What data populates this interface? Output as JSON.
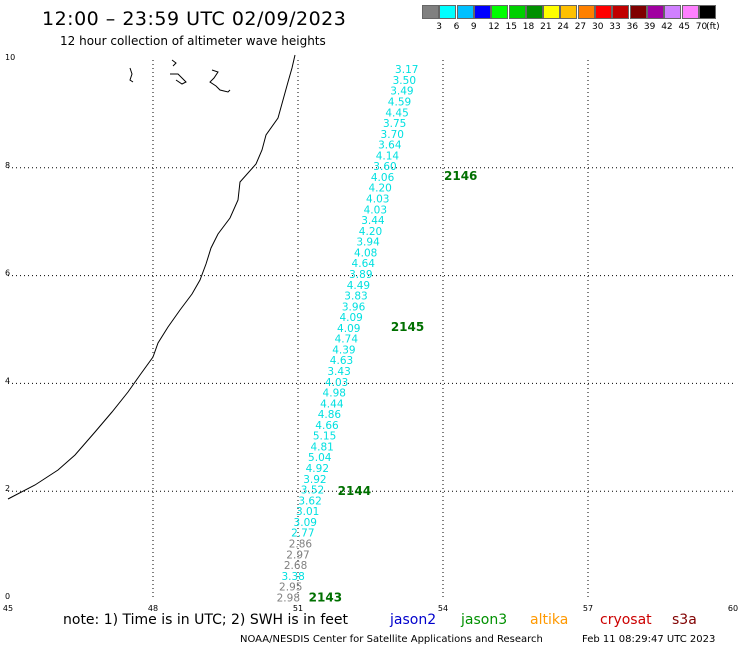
{
  "header": {
    "title": "12:00 – 23:59 UTC 02/09/2023",
    "subtitle": "12 hour collection of altimeter wave heights"
  },
  "legend": {
    "unit": "(ft)",
    "bins": [
      {
        "label": "",
        "color": "#808080"
      },
      {
        "label": "3",
        "color": "#00ffff"
      },
      {
        "label": "6",
        "color": "#00c0ff"
      },
      {
        "label": "9",
        "color": "#0000ff"
      },
      {
        "label": "12",
        "color": "#00ff00"
      },
      {
        "label": "15",
        "color": "#00d000"
      },
      {
        "label": "18",
        "color": "#009000"
      },
      {
        "label": "21",
        "color": "#ffff00"
      },
      {
        "label": "24",
        "color": "#ffc000"
      },
      {
        "label": "27",
        "color": "#ff8000"
      },
      {
        "label": "30",
        "color": "#ff0000"
      },
      {
        "label": "33",
        "color": "#c00000"
      },
      {
        "label": "36",
        "color": "#800000"
      },
      {
        "label": "39",
        "color": "#a000a0"
      },
      {
        "label": "42",
        "color": "#d080ff"
      },
      {
        "label": "45",
        "color": "#ff80ff"
      },
      {
        "label": "70",
        "color": "#000000"
      }
    ]
  },
  "axes": {
    "x_ticks": [
      "45",
      "48",
      "51",
      "54",
      "57",
      "60"
    ],
    "y_ticks": [
      "0",
      "2",
      "4",
      "6",
      "8",
      "10"
    ]
  },
  "chart_data": {
    "type": "scatter",
    "x_range": [
      45,
      60
    ],
    "y_range": [
      0,
      10
    ],
    "grid": true,
    "passes": [
      {
        "label": "2143",
        "lon": 51.2,
        "lat": 0.03
      },
      {
        "label": "2144",
        "lon": 51.8,
        "lat": 2.0
      },
      {
        "label": "2145",
        "lon": 52.9,
        "lat": 5.05
      },
      {
        "label": "2146",
        "lon": 54.0,
        "lat": 7.85
      }
    ],
    "observations": [
      {
        "value": "2.98",
        "lon": 50.8,
        "lat": 0.03,
        "color": "#808080"
      },
      {
        "value": "2.95",
        "lon": 50.85,
        "lat": 0.23,
        "color": "#808080"
      },
      {
        "value": "3.38",
        "lon": 50.9,
        "lat": 0.43,
        "color": "#00e0e0"
      },
      {
        "value": "2.68",
        "lon": 50.95,
        "lat": 0.63,
        "color": "#808080"
      },
      {
        "value": "2.97",
        "lon": 51.0,
        "lat": 0.83,
        "color": "#808080"
      },
      {
        "value": "2.86",
        "lon": 51.05,
        "lat": 1.03,
        "color": "#808080"
      },
      {
        "value": "2.77",
        "lon": 51.1,
        "lat": 1.23,
        "color": "#00e0e0"
      },
      {
        "value": "3.09",
        "lon": 51.15,
        "lat": 1.43,
        "color": "#00e0e0"
      },
      {
        "value": "3.01",
        "lon": 51.2,
        "lat": 1.63,
        "color": "#00e0e0"
      },
      {
        "value": "3.62",
        "lon": 51.25,
        "lat": 1.83,
        "color": "#00e0e0"
      },
      {
        "value": "3.52",
        "lon": 51.3,
        "lat": 2.03,
        "color": "#00e0e0"
      },
      {
        "value": "3.92",
        "lon": 51.35,
        "lat": 2.23,
        "color": "#00e0e0"
      },
      {
        "value": "4.92",
        "lon": 51.4,
        "lat": 2.43,
        "color": "#00e0e0"
      },
      {
        "value": "5.04",
        "lon": 51.45,
        "lat": 2.63,
        "color": "#00e0e0"
      },
      {
        "value": "4.81",
        "lon": 51.5,
        "lat": 2.83,
        "color": "#00e0e0"
      },
      {
        "value": "5.15",
        "lon": 51.55,
        "lat": 3.03,
        "color": "#00e0e0"
      },
      {
        "value": "4.66",
        "lon": 51.6,
        "lat": 3.23,
        "color": "#00e0e0"
      },
      {
        "value": "4.86",
        "lon": 51.65,
        "lat": 3.43,
        "color": "#00e0e0"
      },
      {
        "value": "4.44",
        "lon": 51.7,
        "lat": 3.63,
        "color": "#00e0e0"
      },
      {
        "value": "4.98",
        "lon": 51.75,
        "lat": 3.83,
        "color": "#00e0e0"
      },
      {
        "value": "4.03",
        "lon": 51.8,
        "lat": 4.03,
        "color": "#00e0e0"
      },
      {
        "value": "3.43",
        "lon": 51.85,
        "lat": 4.23,
        "color": "#00e0e0"
      },
      {
        "value": "4.63",
        "lon": 51.9,
        "lat": 4.43,
        "color": "#00e0e0"
      },
      {
        "value": "4.39",
        "lon": 51.95,
        "lat": 4.63,
        "color": "#00e0e0"
      },
      {
        "value": "4.74",
        "lon": 52.0,
        "lat": 4.83,
        "color": "#00e0e0"
      },
      {
        "value": "4.09",
        "lon": 52.05,
        "lat": 5.03,
        "color": "#00e0e0"
      },
      {
        "value": "4.09",
        "lon": 52.1,
        "lat": 5.23,
        "color": "#00e0e0"
      },
      {
        "value": "3.96",
        "lon": 52.15,
        "lat": 5.43,
        "color": "#00e0e0"
      },
      {
        "value": "3.83",
        "lon": 52.2,
        "lat": 5.63,
        "color": "#00e0e0"
      },
      {
        "value": "4.49",
        "lon": 52.25,
        "lat": 5.83,
        "color": "#00e0e0"
      },
      {
        "value": "3.89",
        "lon": 52.3,
        "lat": 6.03,
        "color": "#00e0e0"
      },
      {
        "value": "4.64",
        "lon": 52.35,
        "lat": 6.23,
        "color": "#00e0e0"
      },
      {
        "value": "4.08",
        "lon": 52.4,
        "lat": 6.43,
        "color": "#00e0e0"
      },
      {
        "value": "3.94",
        "lon": 52.45,
        "lat": 6.63,
        "color": "#00e0e0"
      },
      {
        "value": "4.20",
        "lon": 52.5,
        "lat": 6.83,
        "color": "#00e0e0"
      },
      {
        "value": "3.44",
        "lon": 52.55,
        "lat": 7.03,
        "color": "#00e0e0"
      },
      {
        "value": "4.03",
        "lon": 52.6,
        "lat": 7.23,
        "color": "#00e0e0"
      },
      {
        "value": "4.03",
        "lon": 52.65,
        "lat": 7.43,
        "color": "#00e0e0"
      },
      {
        "value": "4.20",
        "lon": 52.7,
        "lat": 7.63,
        "color": "#00e0e0"
      },
      {
        "value": "4.06",
        "lon": 52.75,
        "lat": 7.83,
        "color": "#00e0e0"
      },
      {
        "value": "3.60",
        "lon": 52.8,
        "lat": 8.03,
        "color": "#00e0e0"
      },
      {
        "value": "4.14",
        "lon": 52.85,
        "lat": 8.23,
        "color": "#00e0e0"
      },
      {
        "value": "3.64",
        "lon": 52.9,
        "lat": 8.43,
        "color": "#00e0e0"
      },
      {
        "value": "3.70",
        "lon": 52.95,
        "lat": 8.63,
        "color": "#00e0e0"
      },
      {
        "value": "3.75",
        "lon": 53.0,
        "lat": 8.83,
        "color": "#00e0e0"
      },
      {
        "value": "4.45",
        "lon": 53.05,
        "lat": 9.03,
        "color": "#00e0e0"
      },
      {
        "value": "4.59",
        "lon": 53.1,
        "lat": 9.23,
        "color": "#00e0e0"
      },
      {
        "value": "3.49",
        "lon": 53.15,
        "lat": 9.43,
        "color": "#00e0e0"
      },
      {
        "value": "3.50",
        "lon": 53.2,
        "lat": 9.63,
        "color": "#00e0e0"
      },
      {
        "value": "3.17",
        "lon": 53.25,
        "lat": 9.83,
        "color": "#00e0e0"
      }
    ]
  },
  "footer": {
    "note": "note: 1) Time is in UTC; 2) SWH is in feet",
    "satellites": [
      {
        "name": "jason2",
        "color": "#0000cc"
      },
      {
        "name": "jason3",
        "color": "#009000"
      },
      {
        "name": "altika",
        "color": "#ff9900"
      },
      {
        "name": "cryosat",
        "color": "#cc0000"
      },
      {
        "name": "s3a",
        "color": "#800000"
      }
    ],
    "credit": "NOAA/NESDIS Center for Satellite Applications and Research",
    "timestamp": "Feb 11 08:29:47 UTC 2023"
  }
}
